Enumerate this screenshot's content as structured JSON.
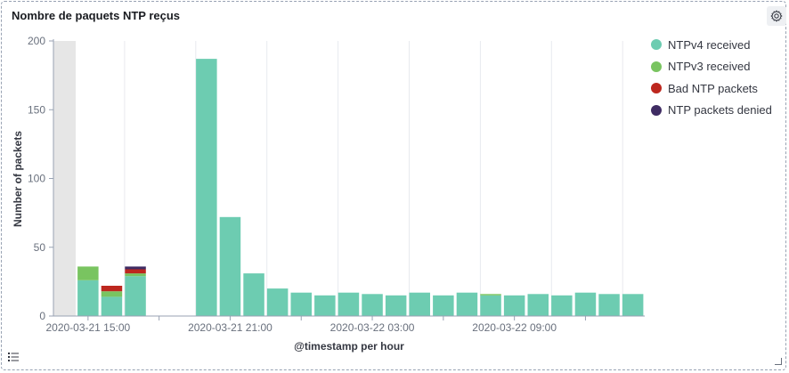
{
  "panel": {
    "title": "Nombre de paquets NTP reçus"
  },
  "colors": {
    "ntpv4": "#6dccb1",
    "ntpv3": "#79c460",
    "bad": "#bd271e",
    "denied": "#3f2c63",
    "gray_band": "#e6e6e6",
    "grid": "#e8eaee",
    "axis_text": "#69707d"
  },
  "chart_data": {
    "type": "bar",
    "stacked": true,
    "xlabel": "@timestamp per hour",
    "ylabel": "Number of packets",
    "ylim": [
      0,
      200
    ],
    "yticks": [
      0,
      50,
      100,
      150,
      200
    ],
    "grid": true,
    "legend_position": "right",
    "xtick_labels": [
      "2020-03-21 15:00",
      "2020-03-21 21:00",
      "2020-03-22 03:00",
      "2020-03-22 09:00"
    ],
    "series": [
      {
        "name": "NTPv4 received",
        "color": "#6dccb1",
        "values": [
          null,
          26,
          14,
          29,
          null,
          null,
          187,
          72,
          31,
          20,
          17,
          15,
          17,
          16,
          15,
          17,
          15,
          17,
          15,
          15,
          16,
          15,
          17,
          16,
          16
        ]
      },
      {
        "name": "NTPv3 received",
        "color": "#79c460",
        "values": [
          null,
          10,
          4,
          2,
          null,
          null,
          0,
          0,
          0,
          0,
          0,
          0,
          0,
          0,
          0,
          0,
          0,
          0,
          1,
          0,
          0,
          0,
          0,
          0,
          0
        ]
      },
      {
        "name": "Bad NTP packets",
        "color": "#bd271e",
        "values": [
          null,
          0,
          4,
          3,
          null,
          null,
          0,
          0,
          0,
          0,
          0,
          0,
          0,
          0,
          0,
          0,
          0,
          0,
          0,
          0,
          0,
          0,
          0,
          0,
          0
        ]
      },
      {
        "name": "NTP packets denied",
        "color": "#3f2c63",
        "values": [
          null,
          0,
          0,
          2,
          null,
          null,
          0,
          0,
          0,
          0,
          0,
          0,
          0,
          0,
          0,
          0,
          0,
          0,
          0,
          0,
          0,
          0,
          0,
          0,
          0
        ]
      }
    ]
  }
}
